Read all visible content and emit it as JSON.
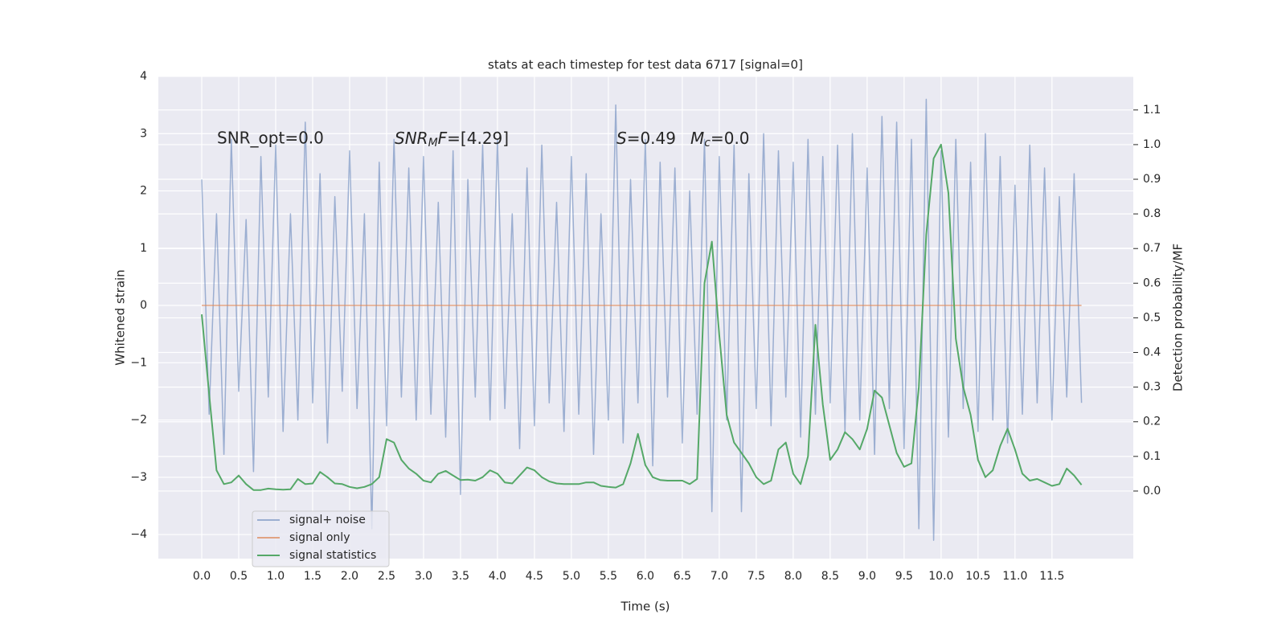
{
  "chart_data": {
    "type": "line",
    "title": "stats at each timestep for test data 6717 [signal=0]",
    "xlabel": "Time (s)",
    "ylabel": "Whitened strain",
    "y2label": "Detection probability/MF",
    "annotations": [
      {
        "text": "SNR_opt=0.0"
      },
      {
        "parts": [
          "SNR",
          "M",
          "F",
          "=[4.29]"
        ]
      },
      {
        "parts": [
          "S",
          "=0.49"
        ]
      },
      {
        "parts": [
          "M",
          "c",
          "=0.0"
        ]
      }
    ],
    "x": [
      0.0,
      0.1,
      0.2,
      0.3,
      0.4,
      0.5,
      0.6,
      0.7,
      0.8,
      0.9,
      1.0,
      1.1,
      1.2,
      1.3,
      1.4,
      1.5,
      1.6,
      1.7,
      1.8,
      1.9,
      2.0,
      2.1,
      2.2,
      2.3,
      2.4,
      2.5,
      2.6,
      2.7,
      2.8,
      2.9,
      3.0,
      3.1,
      3.2,
      3.3,
      3.4,
      3.5,
      3.6,
      3.7,
      3.8,
      3.9,
      4.0,
      4.1,
      4.2,
      4.3,
      4.4,
      4.5,
      4.6,
      4.7,
      4.8,
      4.9,
      5.0,
      5.1,
      5.2,
      5.3,
      5.4,
      5.5,
      5.6,
      5.7,
      5.8,
      5.9,
      6.0,
      6.1,
      6.2,
      6.3,
      6.4,
      6.5,
      6.6,
      6.7,
      6.8,
      6.9,
      7.0,
      7.1,
      7.2,
      7.3,
      7.4,
      7.5,
      7.6,
      7.7,
      7.8,
      7.9,
      8.0,
      8.1,
      8.2,
      8.3,
      8.4,
      8.5,
      8.6,
      8.7,
      8.8,
      8.9,
      9.0,
      9.1,
      9.2,
      9.3,
      9.4,
      9.5,
      9.6,
      9.7,
      9.8,
      9.9,
      10.0,
      10.1,
      10.2,
      10.3,
      10.4,
      10.5,
      10.6,
      10.7,
      10.8,
      10.9,
      11.0,
      11.1,
      11.2,
      11.3,
      11.4,
      11.5,
      11.6,
      11.7,
      11.8,
      11.9
    ],
    "series": [
      {
        "name": "signal+ noise",
        "color": "#4c72b0",
        "opacity": 0.5,
        "values": [
          2.2,
          -1.9,
          1.6,
          -2.6,
          2.9,
          -1.5,
          1.5,
          -2.9,
          2.6,
          -1.6,
          2.8,
          -2.2,
          1.6,
          -2.0,
          3.2,
          -1.7,
          2.3,
          -2.4,
          1.9,
          -1.5,
          2.7,
          -1.8,
          1.6,
          -3.9,
          2.5,
          -2.1,
          2.9,
          -1.6,
          2.4,
          -2.0,
          2.6,
          -1.9,
          1.8,
          -2.3,
          2.7,
          -3.3,
          2.2,
          -1.6,
          2.8,
          -2.0,
          2.9,
          -1.8,
          1.6,
          -2.5,
          2.4,
          -2.1,
          2.8,
          -1.7,
          1.8,
          -2.2,
          2.6,
          -1.9,
          2.3,
          -2.6,
          1.6,
          -2.0,
          3.5,
          -2.4,
          2.2,
          -1.7,
          2.9,
          -2.8,
          2.5,
          -1.6,
          2.4,
          -2.4,
          2.0,
          -1.9,
          2.9,
          -3.6,
          2.6,
          -2.0,
          2.8,
          -3.6,
          2.3,
          -1.8,
          3.0,
          -2.1,
          2.7,
          -1.6,
          2.5,
          -2.3,
          2.9,
          -1.9,
          2.6,
          -1.7,
          2.8,
          -2.2,
          3.0,
          -2.0,
          2.4,
          -2.6,
          3.3,
          -1.8,
          3.2,
          -2.5,
          2.9,
          -3.9,
          3.6,
          -4.1,
          2.7,
          -2.3,
          2.9,
          -1.8,
          2.5,
          -2.2,
          3.0,
          -2.0,
          2.6,
          -2.4,
          2.1,
          -1.9,
          2.8,
          -1.7,
          2.4,
          -2.0,
          1.9,
          -1.6,
          2.3,
          -1.7
        ]
      },
      {
        "name": "signal only",
        "color": "#dd8452",
        "opacity": 0.7,
        "x": [
          0.0,
          11.9
        ],
        "values": [
          0,
          0
        ]
      },
      {
        "name": "signal statistics",
        "color": "#55a868",
        "opacity": 1,
        "axis": "y2",
        "values": [
          0.51,
          0.28,
          0.06,
          0.02,
          0.025,
          0.045,
          0.02,
          0.003,
          0.003,
          0.007,
          0.005,
          0.004,
          0.005,
          0.035,
          0.02,
          0.022,
          0.055,
          0.04,
          0.022,
          0.02,
          0.012,
          0.008,
          0.012,
          0.02,
          0.04,
          0.15,
          0.14,
          0.09,
          0.065,
          0.05,
          0.03,
          0.025,
          0.05,
          0.058,
          0.045,
          0.032,
          0.033,
          0.03,
          0.04,
          0.06,
          0.05,
          0.025,
          0.022,
          0.045,
          0.068,
          0.06,
          0.04,
          0.028,
          0.022,
          0.02,
          0.02,
          0.02,
          0.025,
          0.025,
          0.015,
          0.012,
          0.01,
          0.02,
          0.08,
          0.165,
          0.075,
          0.04,
          0.032,
          0.03,
          0.03,
          0.03,
          0.02,
          0.035,
          0.6,
          0.72,
          0.45,
          0.22,
          0.14,
          0.11,
          0.08,
          0.04,
          0.02,
          0.03,
          0.12,
          0.14,
          0.05,
          0.02,
          0.1,
          0.48,
          0.25,
          0.09,
          0.12,
          0.17,
          0.15,
          0.12,
          0.18,
          0.29,
          0.27,
          0.19,
          0.11,
          0.07,
          0.08,
          0.3,
          0.74,
          0.96,
          1.0,
          0.86,
          0.44,
          0.3,
          0.22,
          0.09,
          0.04,
          0.06,
          0.13,
          0.18,
          0.12,
          0.05,
          0.03,
          0.035,
          0.025,
          0.015,
          0.02,
          0.065,
          0.045,
          0.018
        ]
      }
    ],
    "xlim": [
      -0.587,
      12.6
    ],
    "ylim": [
      -4.42,
      4
    ],
    "y2lim": [
      -0.195,
      1.197
    ],
    "xticks": [
      {
        "value": 0,
        "label": "0.0"
      },
      {
        "value": 0.5,
        "label": "0.5"
      },
      {
        "value": 1,
        "label": "1.0"
      },
      {
        "value": 1.5,
        "label": "1.5"
      },
      {
        "value": 2,
        "label": "2.0"
      },
      {
        "value": 2.5,
        "label": "2.5"
      },
      {
        "value": 3,
        "label": "3.0"
      },
      {
        "value": 3.5,
        "label": "3.5"
      },
      {
        "value": 4,
        "label": "4.0"
      },
      {
        "value": 4.5,
        "label": "4.5"
      },
      {
        "value": 5,
        "label": "5.0"
      },
      {
        "value": 5.5,
        "label": "5.5"
      },
      {
        "value": 6,
        "label": "6.0"
      },
      {
        "value": 6.5,
        "label": "6.5"
      },
      {
        "value": 7,
        "label": "7.0"
      },
      {
        "value": 7.5,
        "label": "7.5"
      },
      {
        "value": 8,
        "label": "8.0"
      },
      {
        "value": 8.5,
        "label": "8.5"
      },
      {
        "value": 9,
        "label": "9.0"
      },
      {
        "value": 9.5,
        "label": "9.5"
      },
      {
        "value": 10,
        "label": "10.0"
      },
      {
        "value": 10.5,
        "label": "10.5"
      },
      {
        "value": 11,
        "label": "11.0"
      },
      {
        "value": 11.5,
        "label": "11.5"
      }
    ],
    "yticks": [
      {
        "value": -4,
        "label": "−4"
      },
      {
        "value": -3,
        "label": "−3"
      },
      {
        "value": -2,
        "label": "−2"
      },
      {
        "value": -1,
        "label": "−1"
      },
      0,
      1,
      2,
      3,
      4
    ],
    "y2ticks": [
      {
        "value": 0,
        "label": "0.0"
      },
      {
        "value": 0.1,
        "label": "0.1"
      },
      {
        "value": 0.2,
        "label": "0.2"
      },
      {
        "value": 0.3,
        "label": "0.3"
      },
      {
        "value": 0.4,
        "label": "0.4"
      },
      {
        "value": 0.5,
        "label": "0.5"
      },
      {
        "value": 0.6,
        "label": "0.6"
      },
      {
        "value": 0.7,
        "label": "0.7"
      },
      {
        "value": 0.8,
        "label": "0.8"
      },
      {
        "value": 0.9,
        "label": "0.9"
      },
      {
        "value": 1,
        "label": "1.0"
      },
      {
        "value": 1.1,
        "label": "1.1"
      }
    ],
    "grid": true,
    "legend": "lower left"
  }
}
